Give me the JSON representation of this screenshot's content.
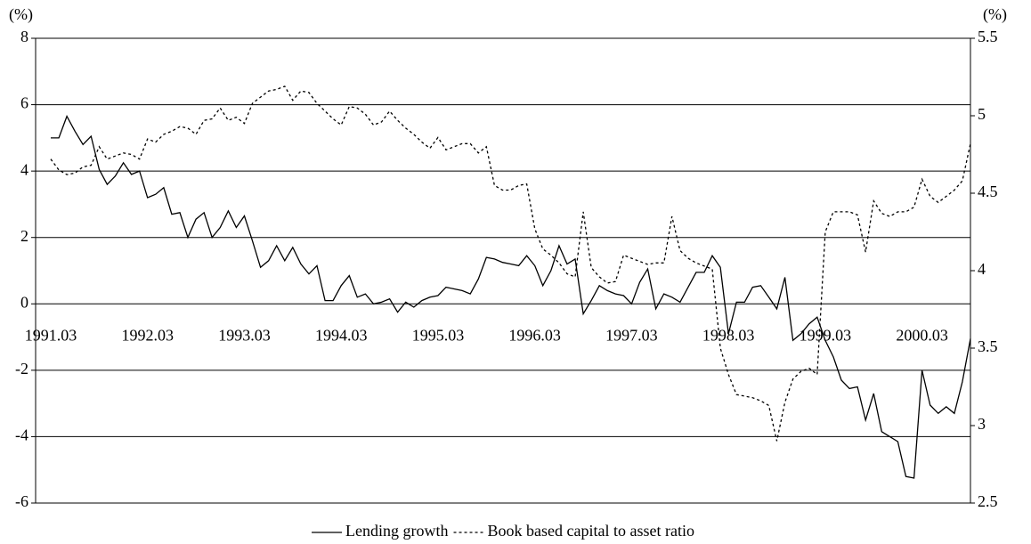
{
  "chart_data": {
    "type": "line",
    "y_label": "(%)",
    "y2_label": "(%)",
    "categories": [
      "1991.03",
      null,
      null,
      null,
      null,
      null,
      null,
      null,
      null,
      null,
      null,
      null,
      "1992.03",
      null,
      null,
      null,
      null,
      null,
      null,
      null,
      null,
      null,
      null,
      null,
      "1993.03",
      null,
      null,
      null,
      null,
      null,
      null,
      null,
      null,
      null,
      null,
      null,
      "1994.03",
      null,
      null,
      null,
      null,
      null,
      null,
      null,
      null,
      null,
      null,
      null,
      "1995.03",
      null,
      null,
      null,
      null,
      null,
      null,
      null,
      null,
      null,
      null,
      null,
      "1996.03",
      null,
      null,
      null,
      null,
      null,
      null,
      null,
      null,
      null,
      null,
      null,
      "1997.03",
      null,
      null,
      null,
      null,
      null,
      null,
      null,
      null,
      null,
      null,
      null,
      "1998.03",
      null,
      null,
      null,
      null,
      null,
      null,
      null,
      null,
      null,
      null,
      null,
      "1999.03",
      null,
      null,
      null,
      null,
      null,
      null,
      null,
      null,
      null,
      null,
      null,
      "2000.03",
      null,
      null,
      null,
      null,
      null,
      null
    ],
    "series": [
      {
        "name": "Lending growth",
        "color": "#000000",
        "dash": "solid",
        "axis": "y",
        "values": [
          5.0,
          5.0,
          5.65,
          5.2,
          4.8,
          5.05,
          4.05,
          3.6,
          3.85,
          4.25,
          3.9,
          4.0,
          3.2,
          3.3,
          3.5,
          2.7,
          2.75,
          2.0,
          2.55,
          2.75,
          2.0,
          2.3,
          2.8,
          2.3,
          2.65,
          1.9,
          1.1,
          1.3,
          1.75,
          1.3,
          1.7,
          1.2,
          0.9,
          1.15,
          0.1,
          0.1,
          0.55,
          0.85,
          0.2,
          0.3,
          0.0,
          0.05,
          0.15,
          -0.25,
          0.05,
          -0.1,
          0.1,
          0.2,
          0.25,
          0.5,
          0.45,
          0.4,
          0.3,
          0.75,
          1.4,
          1.35,
          1.25,
          1.2,
          1.15,
          1.45,
          1.15,
          0.55,
          1.0,
          1.75,
          1.2,
          1.35,
          -0.3,
          0.1,
          0.55,
          0.4,
          0.3,
          0.25,
          0.0,
          0.65,
          1.05,
          -0.15,
          0.3,
          0.2,
          0.05,
          0.5,
          0.95,
          0.95,
          1.45,
          1.1,
          -0.9,
          0.05,
          0.05,
          0.5,
          0.55,
          0.2,
          -0.15,
          0.8,
          -1.1,
          -0.9,
          -0.6,
          -0.4,
          -1.1,
          -1.6,
          -2.3,
          -2.55,
          -2.5,
          -3.5,
          -2.7,
          -3.85,
          -4.0,
          -4.15,
          -5.2,
          -5.25,
          -2.0,
          -3.05,
          -3.3,
          -3.1,
          -3.3,
          -2.35,
          -1.05
        ]
      },
      {
        "name": "Book based capital to asset ratio",
        "color": "#000000",
        "dash": "dotted",
        "axis": "y2",
        "values": [
          4.72,
          4.65,
          4.62,
          4.63,
          4.67,
          4.68,
          4.8,
          4.72,
          4.74,
          4.76,
          4.75,
          4.72,
          4.85,
          4.83,
          4.88,
          4.9,
          4.93,
          4.92,
          4.88,
          4.97,
          4.98,
          5.05,
          4.97,
          4.99,
          4.95,
          5.08,
          5.12,
          5.16,
          5.17,
          5.19,
          5.1,
          5.16,
          5.15,
          5.08,
          5.03,
          4.98,
          4.94,
          5.06,
          5.05,
          5.01,
          4.94,
          4.96,
          5.03,
          4.97,
          4.92,
          4.88,
          4.83,
          4.79,
          4.86,
          4.78,
          4.8,
          4.82,
          4.82,
          4.76,
          4.8,
          4.55,
          4.52,
          4.52,
          4.55,
          4.56,
          4.27,
          4.14,
          4.1,
          4.05,
          3.98,
          3.96,
          4.38,
          4.02,
          3.96,
          3.92,
          3.93,
          4.1,
          4.08,
          4.06,
          4.04,
          4.05,
          4.05,
          4.35,
          4.13,
          4.08,
          4.05,
          4.03,
          4.01,
          3.5,
          3.33,
          3.2,
          3.19,
          3.18,
          3.16,
          3.13,
          2.9,
          3.15,
          3.3,
          3.35,
          3.37,
          3.33,
          4.25,
          4.38,
          4.38,
          4.38,
          4.36,
          4.12,
          4.45,
          4.37,
          4.35,
          4.38,
          4.38,
          4.41,
          4.59,
          4.48,
          4.44,
          4.48,
          4.52,
          4.58,
          4.82
        ]
      }
    ],
    "ylim": [
      -6,
      8
    ],
    "yticks": [
      -6,
      -4,
      -2,
      0,
      2,
      4,
      6,
      8
    ],
    "y2lim": [
      2.5,
      5.5
    ],
    "y2ticks": [
      2.5,
      3,
      3.5,
      4,
      4.5,
      5,
      5.5
    ],
    "grid": true,
    "legend": "bottom"
  }
}
